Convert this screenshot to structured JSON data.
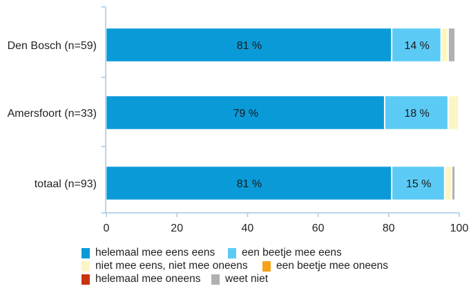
{
  "chart_data": {
    "type": "bar",
    "orientation": "horizontal",
    "stacked": true,
    "title": "",
    "xlabel": "",
    "ylabel": "",
    "xlim": [
      0,
      100
    ],
    "x_ticks": [
      "0",
      "20",
      "40",
      "60",
      "80",
      "100"
    ],
    "categories": [
      "Den Bosch (n=59)",
      "Amersfoort (n=33)",
      "totaal (n=93)"
    ],
    "series": [
      {
        "name": "helemaal mee eens eens",
        "color": "#0a9ad8",
        "values": [
          81,
          79,
          81
        ],
        "labels": [
          "81 %",
          "79 %",
          "81 %"
        ]
      },
      {
        "name": "een beetje mee eens",
        "color": "#5bcbf5",
        "values": [
          14,
          18,
          15
        ],
        "labels": [
          "14 %",
          "18 %",
          "15 %"
        ]
      },
      {
        "name": "niet mee eens, niet mee oneens",
        "color": "#fdf5c4",
        "values": [
          2,
          3,
          2
        ],
        "labels": [
          "",
          "",
          ""
        ]
      },
      {
        "name": "een beetje mee oneens",
        "color": "#f7a11a",
        "values": [
          0,
          0,
          0
        ],
        "labels": [
          "",
          "",
          ""
        ]
      },
      {
        "name": "helemaal mee oneens",
        "color": "#c9330d",
        "values": [
          0,
          0,
          0
        ],
        "labels": [
          "",
          "",
          ""
        ]
      },
      {
        "name": "weet niet",
        "color": "#b0b0b0",
        "values": [
          2,
          0,
          1
        ],
        "labels": [
          "",
          "",
          ""
        ]
      }
    ],
    "legend_position": "bottom",
    "grid": false
  }
}
